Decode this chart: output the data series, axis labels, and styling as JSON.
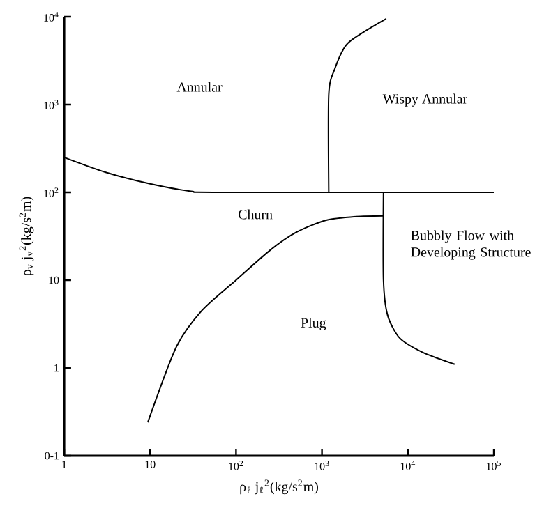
{
  "chart_data": {
    "type": "line",
    "log": "xy",
    "xlabel": "ρ$_{ℓ}$ j$_{ℓ}$$^{2}$(kg/s$^{2}$m)",
    "ylabel": "ρ$_{v}$ j$_{v}$$^{2}$(kg/s$^{2}$m)",
    "xlim": [
      1,
      100000
    ],
    "ylim": [
      0.1,
      10000
    ],
    "xticks": [
      1,
      10,
      {
        "value": 100,
        "label": "10$^{2}$"
      },
      {
        "value": 1000,
        "label": "10$^{3}$"
      },
      {
        "value": 10000,
        "label": "10$^{4}$"
      },
      {
        "value": 100000,
        "label": "10$^{5}$"
      }
    ],
    "yticks": [
      {
        "value": 0.1,
        "label": "0-1"
      },
      1,
      10,
      {
        "value": 100,
        "label": "10$^{2}$"
      },
      {
        "value": 1000,
        "label": "10$^{3}$"
      },
      {
        "value": 10000,
        "label": "10$^{4}$"
      }
    ],
    "marker": "none",
    "line_style": "solid",
    "series": [
      {
        "color": "#000000",
        "x": [
          1,
          3,
          10,
          30,
          63,
          100000
        ],
        "values": [
          250,
          170,
          125,
          103,
          100,
          100
        ]
      },
      {
        "color": "#000000",
        "x": [
          1200,
          1200,
          1400,
          2000,
          5600
        ],
        "values": [
          100,
          1300,
          2500,
          5000,
          9500
        ]
      },
      {
        "color": "#000000",
        "x": [
          5200,
          5200,
          5800,
          8000,
          15000,
          35000
        ],
        "values": [
          100,
          10,
          4,
          2.2,
          1.5,
          1.1
        ]
      },
      {
        "color": "#000000",
        "x": [
          9.4,
          20,
          40,
          100,
          250,
          500,
          1100,
          2500,
          5200
        ],
        "values": [
          0.24,
          1.7,
          4.5,
          10,
          22,
          35,
          48,
          53,
          54
        ]
      }
    ],
    "annotations": [
      "Annular",
      "Wispy Annular",
      "Churn",
      "Bubbly Flow with Developing Structure",
      "Plug"
    ]
  }
}
